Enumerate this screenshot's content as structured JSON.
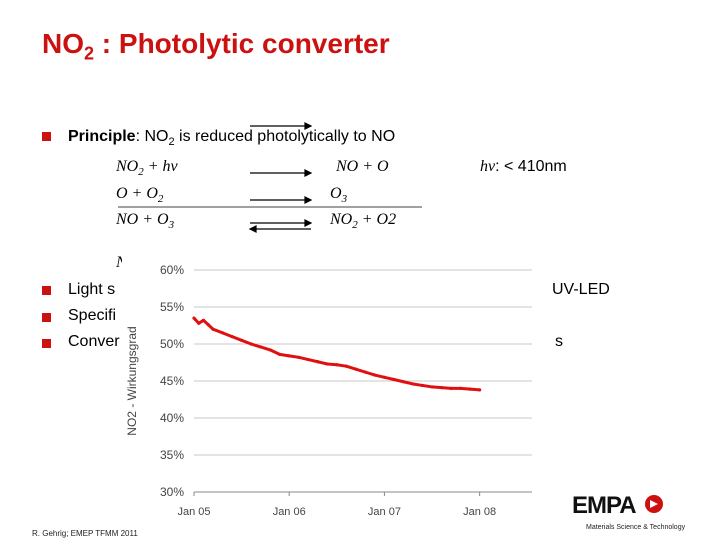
{
  "slide": {
    "title_main": "NO",
    "title_sub": "2",
    "title_rest": " : Photolytic converter",
    "bullets": [
      {
        "prefix": "Principle",
        "rest_a": ": NO",
        "rest_sub": "2",
        "rest_b": " is reduced photolytically to NO"
      },
      {
        "text": "Light s"
      },
      {
        "text": "Specifi"
      },
      {
        "text": "Conver"
      }
    ],
    "clipped_right": [
      "UV-LED",
      "s"
    ],
    "clipped_mid": "N",
    "reactions": [
      {
        "left_a": "NO",
        "left_sub": "2",
        "left_b": " + hv",
        "right_a": "NO + O",
        "right_sub": "",
        "right_b": ""
      },
      {
        "left_a": "O + O",
        "left_sub": "2",
        "left_b": "",
        "right_a": "O",
        "right_sub": "3",
        "right_b": ""
      },
      {
        "left_a": "NO + O",
        "left_sub": "3",
        "left_b": "",
        "right_a": "NO",
        "right_sub": "2",
        "right_b": " + O2"
      }
    ],
    "hv_label": "hv",
    "hv_value": ": < 410nm",
    "footer": "R. Gehrig; EMEP TFMM 2011",
    "logo": "EMPA",
    "logo_tagline": "Materials Science & Technology"
  },
  "chart_data": {
    "type": "line",
    "ylabel": "NO2 - Wirkungsgrad",
    "ytick_labels": [
      "60%",
      "55%",
      "50%",
      "45%",
      "40%",
      "35%",
      "30%"
    ],
    "yticks": [
      60,
      55,
      50,
      45,
      40,
      35,
      30
    ],
    "ylim": [
      30,
      60
    ],
    "xtick_labels": [
      "Jan 05",
      "Jan 06",
      "Jan 07",
      "Jan 08"
    ],
    "xlim": [
      0,
      3.55
    ],
    "xticks": [
      0,
      1,
      2,
      3
    ],
    "grid": "horizontal",
    "series": [
      {
        "color": "#e01010",
        "x": [
          0.0,
          0.05,
          0.1,
          0.15,
          0.2,
          0.3,
          0.4,
          0.5,
          0.6,
          0.7,
          0.8,
          0.9,
          1.0,
          1.1,
          1.2,
          1.3,
          1.4,
          1.5,
          1.6,
          1.7,
          1.8,
          1.9,
          2.0,
          2.1,
          2.2,
          2.3,
          2.4,
          2.5,
          2.6,
          2.7,
          2.8,
          2.9,
          3.0
        ],
        "y": [
          53.5,
          52.8,
          53.2,
          52.6,
          52.0,
          51.5,
          51.0,
          50.5,
          50.0,
          49.6,
          49.2,
          48.6,
          48.4,
          48.2,
          47.9,
          47.6,
          47.3,
          47.2,
          47.0,
          46.6,
          46.2,
          45.8,
          45.5,
          45.2,
          44.9,
          44.6,
          44.4,
          44.2,
          44.1,
          44.0,
          44.0,
          43.9,
          43.8
        ]
      }
    ]
  }
}
